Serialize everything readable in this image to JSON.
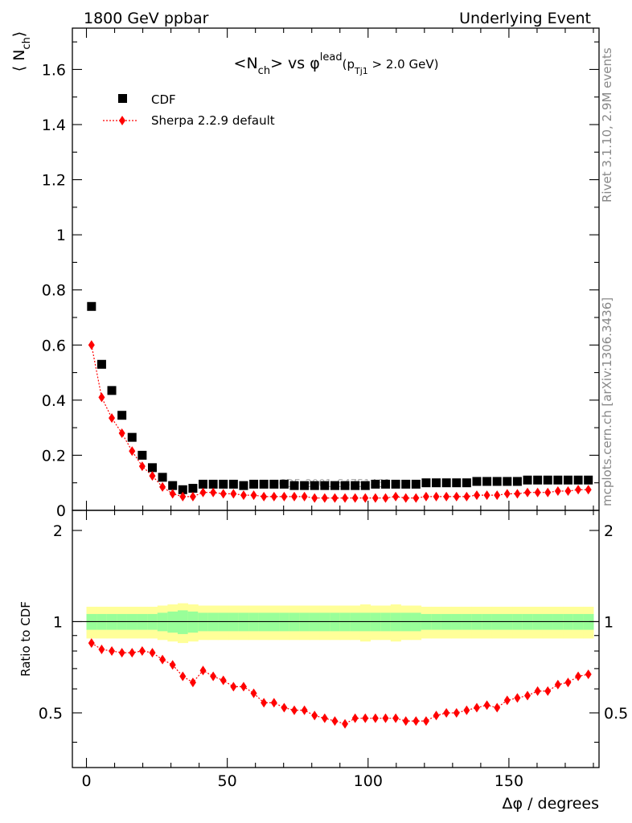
{
  "header": {
    "left": "1800 GeV ppbar",
    "right": "Underlying Event"
  },
  "side_text": {
    "rivet": "Rivet 3.1.10,  2.9M events",
    "mcplots": "mcplots.cern.ch [arXiv:1306.3436]"
  },
  "watermark": "CDF_2001_S4751469",
  "colors": {
    "cdf": "#000000",
    "sherpa": "#ff0000",
    "band_inner": "#99ff99",
    "band_outer": "#ffff99"
  },
  "chart_data": [
    {
      "type": "scatter",
      "title_parts": {
        "base": "<N",
        "sub": "ch",
        "mid": "> vs ",
        "phi": "φ",
        "sup": "lead",
        "cut1": "(p",
        "cut_sub": "Tj1",
        "cut2": " > 2.0 GeV)"
      },
      "ylabel_parts": {
        "open": "⟨ N",
        "sub": "ch",
        "close": "⟩"
      },
      "ylim": [
        0,
        1.75
      ],
      "xlim": [
        -5,
        182
      ],
      "yticks": [
        "0",
        "0.2",
        "0.4",
        "0.6",
        "0.8",
        "1",
        "1.2",
        "1.4",
        "1.6"
      ],
      "legend_position": "top-left",
      "series": [
        {
          "name": "CDF",
          "marker": "square",
          "x": [
            1.8,
            5.4,
            9,
            12.6,
            16.2,
            19.8,
            23.4,
            27,
            30.6,
            34.2,
            37.8,
            41.4,
            45,
            48.6,
            52.2,
            55.8,
            59.4,
            63,
            66.6,
            70.2,
            73.8,
            77.4,
            81,
            84.6,
            88.2,
            91.8,
            95.4,
            99,
            102.6,
            106.2,
            109.8,
            113.4,
            117,
            120.6,
            124.2,
            127.8,
            131.4,
            135,
            138.6,
            142.2,
            145.8,
            149.4,
            153,
            156.6,
            160.2,
            163.8,
            167.4,
            171,
            174.6,
            178.2
          ],
          "y": [
            0.74,
            0.53,
            0.435,
            0.345,
            0.265,
            0.2,
            0.155,
            0.12,
            0.09,
            0.075,
            0.08,
            0.095,
            0.095,
            0.095,
            0.095,
            0.09,
            0.095,
            0.095,
            0.095,
            0.095,
            0.09,
            0.09,
            0.09,
            0.09,
            0.09,
            0.09,
            0.09,
            0.09,
            0.095,
            0.095,
            0.095,
            0.095,
            0.095,
            0.1,
            0.1,
            0.1,
            0.1,
            0.1,
            0.105,
            0.105,
            0.105,
            0.105,
            0.105,
            0.11,
            0.11,
            0.11,
            0.11,
            0.11,
            0.11,
            0.11
          ]
        },
        {
          "name": "Sherpa 2.2.9 default",
          "marker": "diamond",
          "x": [
            1.8,
            5.4,
            9,
            12.6,
            16.2,
            19.8,
            23.4,
            27,
            30.6,
            34.2,
            37.8,
            41.4,
            45,
            48.6,
            52.2,
            55.8,
            59.4,
            63,
            66.6,
            70.2,
            73.8,
            77.4,
            81,
            84.6,
            88.2,
            91.8,
            95.4,
            99,
            102.6,
            106.2,
            109.8,
            113.4,
            117,
            120.6,
            124.2,
            127.8,
            131.4,
            135,
            138.6,
            142.2,
            145.8,
            149.4,
            153,
            156.6,
            160.2,
            163.8,
            167.4,
            171,
            174.6,
            178.2
          ],
          "y": [
            0.6,
            0.41,
            0.335,
            0.28,
            0.215,
            0.16,
            0.125,
            0.085,
            0.06,
            0.05,
            0.05,
            0.065,
            0.065,
            0.06,
            0.06,
            0.055,
            0.055,
            0.05,
            0.05,
            0.05,
            0.05,
            0.05,
            0.045,
            0.045,
            0.045,
            0.045,
            0.045,
            0.045,
            0.045,
            0.045,
            0.05,
            0.045,
            0.045,
            0.05,
            0.05,
            0.05,
            0.05,
            0.05,
            0.055,
            0.055,
            0.055,
            0.06,
            0.06,
            0.065,
            0.065,
            0.065,
            0.07,
            0.07,
            0.075,
            0.075
          ]
        }
      ]
    },
    {
      "type": "scatter",
      "ylabel": "Ratio to CDF",
      "xlabel_parts": {
        "delta": "Δφ",
        "rest": " / degrees"
      },
      "ylim": [
        0.33,
        2.33
      ],
      "xlim": [
        -5,
        182
      ],
      "xticks": [
        "0",
        "50",
        "100",
        "150"
      ],
      "yticks": [
        "0.5",
        "1",
        "2"
      ],
      "band_inner_halfwidth": [
        0.06,
        0.06,
        0.06,
        0.06,
        0.06,
        0.06,
        0.06,
        0.07,
        0.08,
        0.09,
        0.08,
        0.07,
        0.07,
        0.07,
        0.07,
        0.07,
        0.07,
        0.07,
        0.07,
        0.07,
        0.07,
        0.07,
        0.07,
        0.07,
        0.07,
        0.07,
        0.07,
        0.07,
        0.07,
        0.07,
        0.07,
        0.07,
        0.07,
        0.06,
        0.06,
        0.06,
        0.06,
        0.06,
        0.06,
        0.06,
        0.06,
        0.06,
        0.06,
        0.06,
        0.06,
        0.06,
        0.06,
        0.06,
        0.06,
        0.06
      ],
      "band_outer_halfwidth": [
        0.12,
        0.12,
        0.12,
        0.12,
        0.12,
        0.12,
        0.12,
        0.13,
        0.14,
        0.15,
        0.14,
        0.13,
        0.13,
        0.13,
        0.13,
        0.13,
        0.13,
        0.13,
        0.13,
        0.13,
        0.13,
        0.13,
        0.13,
        0.13,
        0.13,
        0.13,
        0.13,
        0.14,
        0.13,
        0.13,
        0.14,
        0.13,
        0.13,
        0.12,
        0.12,
        0.12,
        0.12,
        0.12,
        0.12,
        0.12,
        0.12,
        0.12,
        0.12,
        0.12,
        0.12,
        0.12,
        0.12,
        0.12,
        0.12,
        0.12
      ],
      "series": [
        {
          "name": "Sherpa 2.2.9 default",
          "marker": "diamond",
          "x": [
            1.8,
            5.4,
            9,
            12.6,
            16.2,
            19.8,
            23.4,
            27,
            30.6,
            34.2,
            37.8,
            41.4,
            45,
            48.6,
            52.2,
            55.8,
            59.4,
            63,
            66.6,
            70.2,
            73.8,
            77.4,
            81,
            84.6,
            88.2,
            91.8,
            95.4,
            99,
            102.6,
            106.2,
            109.8,
            113.4,
            117,
            120.6,
            124.2,
            127.8,
            131.4,
            135,
            138.6,
            142.2,
            145.8,
            149.4,
            153,
            156.6,
            160.2,
            163.8,
            167.4,
            171,
            174.6,
            178.2
          ],
          "y": [
            0.85,
            0.81,
            0.8,
            0.79,
            0.79,
            0.8,
            0.79,
            0.75,
            0.72,
            0.66,
            0.63,
            0.69,
            0.66,
            0.64,
            0.61,
            0.61,
            0.58,
            0.54,
            0.54,
            0.52,
            0.51,
            0.51,
            0.49,
            0.48,
            0.47,
            0.46,
            0.48,
            0.48,
            0.48,
            0.48,
            0.48,
            0.47,
            0.47,
            0.47,
            0.49,
            0.5,
            0.5,
            0.51,
            0.52,
            0.53,
            0.52,
            0.55,
            0.56,
            0.57,
            0.59,
            0.59,
            0.62,
            0.63,
            0.66,
            0.67
          ]
        }
      ]
    }
  ]
}
